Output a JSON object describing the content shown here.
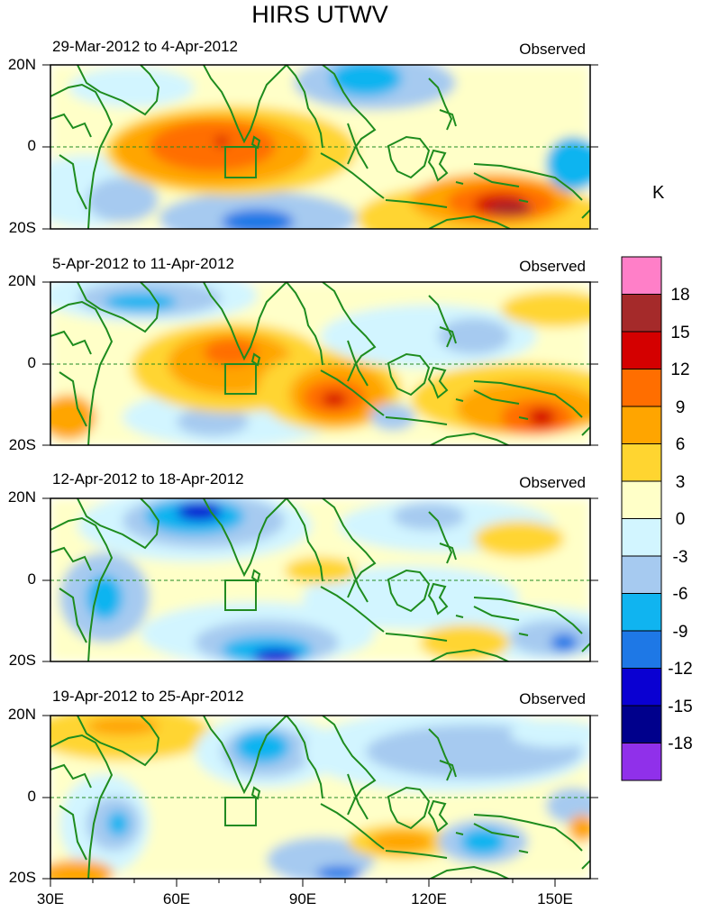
{
  "title": "HIRS UTWV",
  "panels": [
    {
      "date_range": "29-Mar-2012 to 4-Apr-2012",
      "tag": "Observed"
    },
    {
      "date_range": "5-Apr-2012 to 11-Apr-2012",
      "tag": "Observed"
    },
    {
      "date_range": "12-Apr-2012 to 18-Apr-2012",
      "tag": "Observed"
    },
    {
      "date_range": "19-Apr-2012 to 25-Apr-2012",
      "tag": "Observed"
    }
  ],
  "lat_labels": [
    "20N",
    "0",
    "20S"
  ],
  "lon_labels": [
    "30E",
    "60E",
    "90E",
    "120E",
    "150E"
  ],
  "colorbar": {
    "unit": "K",
    "ticks": [
      "18",
      "15",
      "12",
      "9",
      "6",
      "3",
      "0",
      "-3",
      "-6",
      "-9",
      "-12",
      "-15",
      "-18"
    ],
    "colors": [
      "#ff7fc8",
      "#a52a2a",
      "#d40000",
      "#ff6e00",
      "#ffa500",
      "#ffd530",
      "#ffffc8",
      "#d2f5ff",
      "#a6caf0",
      "#10b4f0",
      "#1e78e6",
      "#0a00d2",
      "#00008c",
      "#9030ea"
    ]
  },
  "colors": {
    "coast": "#1e8c1e",
    "box": "#228b22",
    "equator": "#228b22"
  }
}
